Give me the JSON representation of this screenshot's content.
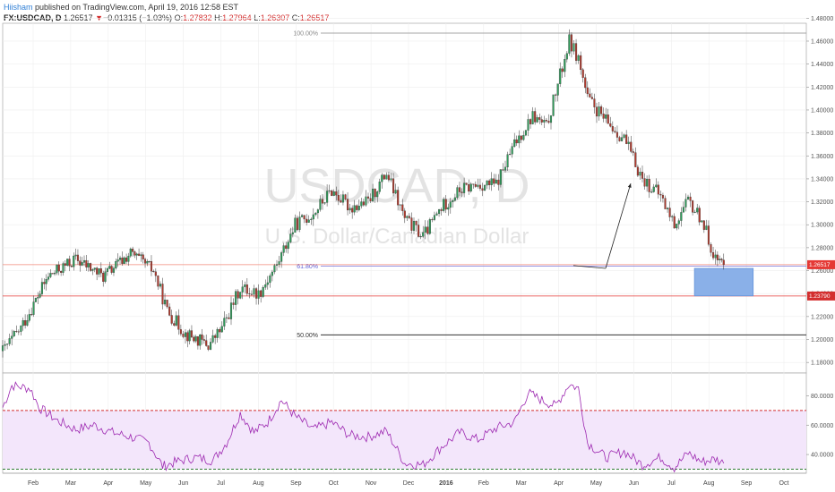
{
  "header": {
    "author": "Hiisham",
    "published": " published on TradingView.com, April 19, 2016 12:58 EST",
    "symbol": "FX:USDCAD, D",
    "last": "1.26517",
    "change_arrow": "▼",
    "change": "−0.01315 (−1.03%)",
    "o_label": "O:",
    "o_val": "1.27832",
    "h_label": "H:",
    "h_val": "1.27964",
    "l_label": "L:",
    "l_val": "1.26307",
    "c_label": "C:",
    "c_val": "1.26517"
  },
  "watermark": {
    "symbol": "USDCAD, D",
    "name": "U.S. Dollar/Canadian Dollar"
  },
  "chart_data": {
    "type": "candlestick",
    "instrument": "FX:USDCAD",
    "price_axis": {
      "ylim": [
        1.17,
        1.49
      ],
      "ticks": [
        "1.48000",
        "1.46000",
        "1.44000",
        "1.42000",
        "1.40000",
        "1.38000",
        "1.36000",
        "1.34000",
        "1.32000",
        "1.30000",
        "1.28000",
        "1.26000",
        "1.24000",
        "1.22000",
        "1.20000",
        "1.18000"
      ]
    },
    "months": [
      "Feb",
      "Mar",
      "Apr",
      "May",
      "Jun",
      "Jul",
      "Aug",
      "Sep",
      "Oct",
      "Nov",
      "Dec",
      "2016",
      "Feb",
      "Mar",
      "Apr",
      "May",
      "Jun",
      "Jul",
      "Aug",
      "Sep",
      "Oct"
    ],
    "price_path": [
      [
        0,
        1.19
      ],
      [
        2,
        1.21
      ],
      [
        5,
        1.255
      ],
      [
        8,
        1.27
      ],
      [
        11,
        1.255
      ],
      [
        14,
        1.275
      ],
      [
        16.5,
        1.26
      ],
      [
        18,
        1.225
      ],
      [
        20,
        1.205
      ],
      [
        22.5,
        1.195
      ],
      [
        24,
        1.21
      ],
      [
        26,
        1.245
      ],
      [
        28,
        1.24
      ],
      [
        30,
        1.265
      ],
      [
        32,
        1.3
      ],
      [
        34,
        1.31
      ],
      [
        36,
        1.33
      ],
      [
        38,
        1.315
      ],
      [
        40,
        1.32
      ],
      [
        42,
        1.345
      ],
      [
        44,
        1.305
      ],
      [
        46,
        1.29
      ],
      [
        48,
        1.315
      ],
      [
        50,
        1.33
      ],
      [
        52,
        1.335
      ],
      [
        54,
        1.335
      ],
      [
        56,
        1.37
      ],
      [
        58,
        1.395
      ],
      [
        59.5,
        1.385
      ],
      [
        61,
        1.43
      ],
      [
        62,
        1.46
      ],
      [
        63,
        1.445
      ],
      [
        64,
        1.41
      ],
      [
        66,
        1.39
      ],
      [
        68,
        1.375
      ],
      [
        70,
        1.34
      ],
      [
        72,
        1.325
      ],
      [
        73.5,
        1.3
      ],
      [
        75,
        1.32
      ],
      [
        76.5,
        1.305
      ],
      [
        78,
        1.27
      ],
      [
        78.9,
        1.265
      ]
    ],
    "last_close": 1.26517,
    "price_labels": [
      "1.26517",
      "1.23790"
    ],
    "fibonacci": [
      {
        "level": "100.00%",
        "price": 1.467
      },
      {
        "level": "61.80%",
        "price": 1.264
      },
      {
        "level": "50.00%",
        "price": 1.204
      }
    ],
    "support_lines": [
      1.2652,
      1.2379
    ],
    "target_zone": {
      "price_top": 1.262,
      "price_bottom": 1.238,
      "from_week": 75.5,
      "to_week": 83.5
    },
    "projection_arrow": {
      "from": [
        83.5,
        1.262
      ],
      "to": [
        87,
        1.336
      ]
    },
    "rsi": {
      "upper_band": 70,
      "lower_band": 30,
      "ticks": [
        "80.0000",
        "60.0000",
        "40.0000"
      ],
      "path": [
        [
          0,
          72
        ],
        [
          1,
          87
        ],
        [
          3,
          85
        ],
        [
          4,
          72
        ],
        [
          6,
          63
        ],
        [
          8,
          57
        ],
        [
          10,
          60
        ],
        [
          12,
          55
        ],
        [
          14,
          52
        ],
        [
          16,
          48
        ],
        [
          17.5,
          32
        ],
        [
          19,
          35
        ],
        [
          21,
          38
        ],
        [
          23,
          36
        ],
        [
          24.5,
          48
        ],
        [
          26,
          68
        ],
        [
          27.5,
          55
        ],
        [
          29,
          62
        ],
        [
          30.5,
          77
        ],
        [
          32,
          66
        ],
        [
          34,
          57
        ],
        [
          36,
          62
        ],
        [
          38,
          53
        ],
        [
          40,
          52
        ],
        [
          42,
          56
        ],
        [
          44,
          34
        ],
        [
          46,
          33
        ],
        [
          48,
          45
        ],
        [
          50,
          55
        ],
        [
          52,
          50
        ],
        [
          54,
          58
        ],
        [
          56,
          62
        ],
        [
          57.5,
          82
        ],
        [
          59,
          77
        ],
        [
          60.5,
          73
        ],
        [
          62,
          88
        ],
        [
          63,
          85
        ],
        [
          64,
          48
        ],
        [
          66,
          38
        ],
        [
          68,
          42
        ],
        [
          70,
          33
        ],
        [
          72,
          38
        ],
        [
          73.5,
          31
        ],
        [
          75,
          41
        ],
        [
          76.5,
          35
        ],
        [
          78,
          37
        ],
        [
          78.9,
          34
        ]
      ]
    }
  }
}
